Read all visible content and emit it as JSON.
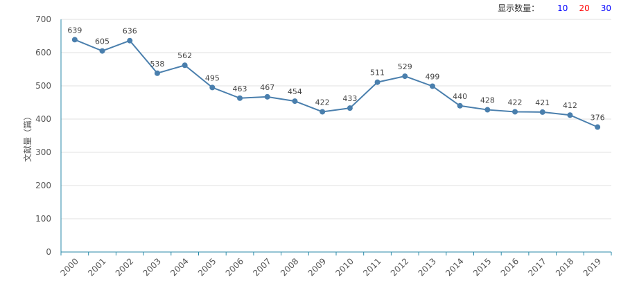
{
  "controls": {
    "label": "显示数量：",
    "options": [
      {
        "label": "10",
        "color": "#0000ff"
      },
      {
        "label": "20",
        "color": "#ff0000"
      },
      {
        "label": "30",
        "color": "#0000ff"
      }
    ]
  },
  "colors": {
    "line": "#4a7fad",
    "axis": "#2a8aa8",
    "grid": "#e0e0e0"
  },
  "chart_data": {
    "type": "line",
    "ylabel": "文献量（篇）",
    "xlabel": "",
    "ylim": [
      0,
      700
    ],
    "yticks": [
      0,
      100,
      200,
      300,
      400,
      500,
      600,
      700
    ],
    "grid": true,
    "categories": [
      "2000",
      "2001",
      "2002",
      "2003",
      "2004",
      "2005",
      "2006",
      "2007",
      "2008",
      "2009",
      "2010",
      "2011",
      "2012",
      "2013",
      "2014",
      "2015",
      "2016",
      "2017",
      "2018",
      "2019"
    ],
    "series": [
      {
        "values": [
          639,
          605,
          636,
          538,
          562,
          495,
          463,
          467,
          454,
          422,
          433,
          511,
          529,
          499,
          440,
          428,
          422,
          421,
          412,
          376
        ]
      }
    ]
  }
}
